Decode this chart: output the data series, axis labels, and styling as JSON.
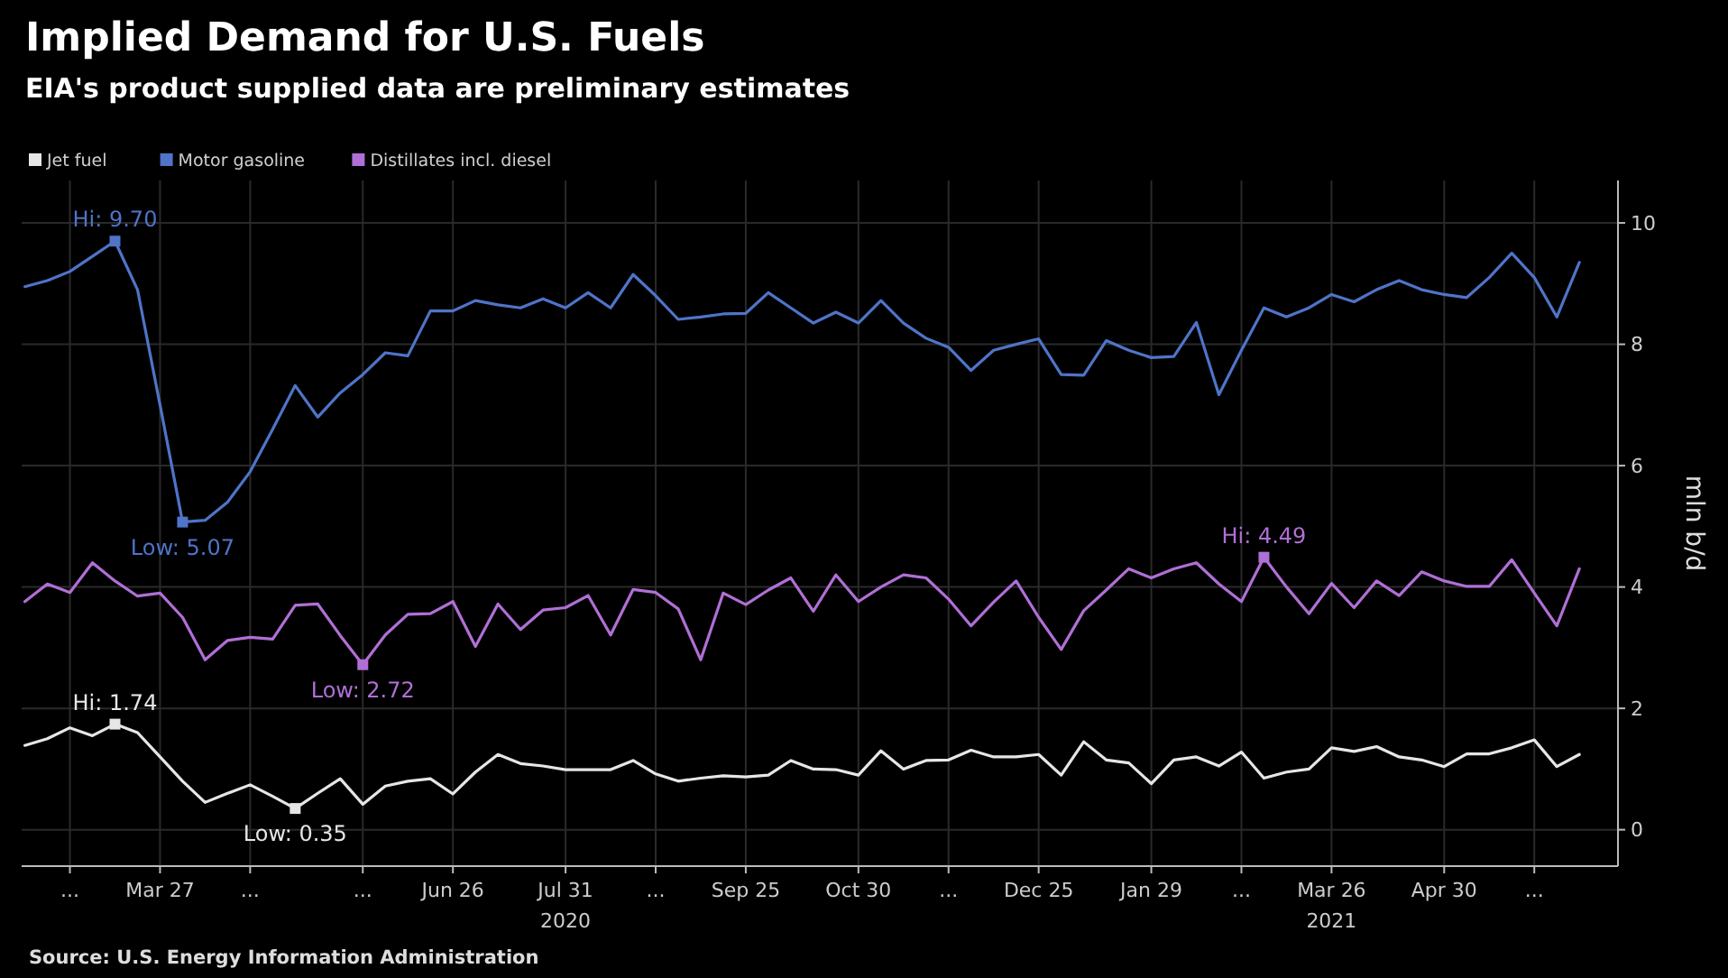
{
  "chart_data": {
    "type": "line",
    "title": "Implied Demand for U.S. Fuels",
    "subtitle": "EIA's product supplied data are preliminary estimates",
    "ylabel": "mln b/d",
    "x": [
      "2020-02-14",
      "2020-02-21",
      "2020-02-28",
      "2020-03-06",
      "2020-03-13",
      "2020-03-20",
      "2020-03-27",
      "2020-04-03",
      "2020-04-10",
      "2020-04-17",
      "2020-04-24",
      "2020-05-01",
      "2020-05-08",
      "2020-05-15",
      "2020-05-22",
      "2020-05-29",
      "2020-06-05",
      "2020-06-12",
      "2020-06-19",
      "2020-06-26",
      "2020-07-03",
      "2020-07-10",
      "2020-07-17",
      "2020-07-24",
      "2020-07-31",
      "2020-08-07",
      "2020-08-14",
      "2020-08-21",
      "2020-08-28",
      "2020-09-04",
      "2020-09-11",
      "2020-09-18",
      "2020-09-25",
      "2020-10-02",
      "2020-10-09",
      "2020-10-16",
      "2020-10-23",
      "2020-10-30",
      "2020-11-06",
      "2020-11-13",
      "2020-11-20",
      "2020-11-27",
      "2020-12-04",
      "2020-12-11",
      "2020-12-18",
      "2020-12-25",
      "2021-01-01",
      "2021-01-08",
      "2021-01-15",
      "2021-01-22",
      "2021-01-29",
      "2021-02-05",
      "2021-02-12",
      "2021-02-19",
      "2021-02-26",
      "2021-03-05",
      "2021-03-12",
      "2021-03-19",
      "2021-03-26",
      "2021-04-02",
      "2021-04-09",
      "2021-04-16",
      "2021-04-23",
      "2021-04-30",
      "2021-05-07",
      "2021-05-14",
      "2021-05-21",
      "2021-05-28",
      "2021-06-04",
      "2021-06-11"
    ],
    "series": [
      {
        "name": "Jet fuel",
        "color": "#e6e6e6",
        "values": [
          1.39,
          1.5,
          1.68,
          1.55,
          1.74,
          1.6,
          1.2,
          0.8,
          0.45,
          0.6,
          0.74,
          0.55,
          0.35,
          0.6,
          0.84,
          0.42,
          0.72,
          0.8,
          0.84,
          0.59,
          0.95,
          1.24,
          1.09,
          1.05,
          0.99,
          0.99,
          0.99,
          1.14,
          0.92,
          0.8,
          0.85,
          0.89,
          0.87,
          0.9,
          1.14,
          1.0,
          0.99,
          0.9,
          1.3,
          1.0,
          1.14,
          1.15,
          1.31,
          1.2,
          1.2,
          1.24,
          0.9,
          1.45,
          1.15,
          1.1,
          0.76,
          1.15,
          1.2,
          1.05,
          1.28,
          0.85,
          0.95,
          1.0,
          1.35,
          1.29,
          1.37,
          1.2,
          1.15,
          1.04,
          1.25,
          1.25,
          1.35,
          1.48,
          1.04,
          1.24
        ]
      },
      {
        "name": "Motor gasoline",
        "color": "#4f74c8",
        "values": [
          8.95,
          9.05,
          9.2,
          9.45,
          9.7,
          8.9,
          7.0,
          5.07,
          5.1,
          5.4,
          5.9,
          6.6,
          7.32,
          6.8,
          7.2,
          7.5,
          7.86,
          7.81,
          8.55,
          8.55,
          8.72,
          8.65,
          8.6,
          8.75,
          8.6,
          8.85,
          8.6,
          9.15,
          8.8,
          8.41,
          8.45,
          8.5,
          8.51,
          8.85,
          8.6,
          8.35,
          8.53,
          8.35,
          8.72,
          8.35,
          8.1,
          7.95,
          7.57,
          7.9,
          8.0,
          8.09,
          7.5,
          7.49,
          8.06,
          7.9,
          7.78,
          7.8,
          8.36,
          7.17,
          7.9,
          8.6,
          8.45,
          8.6,
          8.82,
          8.7,
          8.9,
          9.05,
          8.9,
          8.82,
          8.77,
          9.1,
          9.5,
          9.1,
          8.45,
          9.35
        ]
      },
      {
        "name": "Distillates incl. diesel",
        "color": "#b06fd6",
        "values": [
          3.76,
          4.05,
          3.91,
          4.4,
          4.1,
          3.85,
          3.9,
          3.5,
          2.8,
          3.12,
          3.17,
          3.14,
          3.7,
          3.72,
          3.2,
          2.72,
          3.21,
          3.55,
          3.56,
          3.76,
          3.02,
          3.72,
          3.3,
          3.62,
          3.66,
          3.86,
          3.21,
          3.96,
          3.91,
          3.64,
          2.8,
          3.9,
          3.71,
          3.95,
          4.15,
          3.6,
          4.2,
          3.76,
          4.0,
          4.2,
          4.15,
          3.8,
          3.36,
          3.75,
          4.1,
          3.5,
          2.97,
          3.61,
          3.95,
          4.3,
          4.15,
          4.3,
          4.4,
          4.05,
          3.76,
          4.49,
          4.0,
          3.56,
          4.06,
          3.66,
          4.1,
          3.86,
          4.25,
          4.1,
          4.01,
          4.01,
          4.45,
          3.9,
          3.36,
          4.3
        ]
      }
    ],
    "xlim": [
      "2020-02-13",
      "2021-06-23"
    ],
    "xticks": [
      {
        "value": "2020-02-28",
        "label": "..."
      },
      {
        "value": "2020-03-27",
        "label": "Mar 27"
      },
      {
        "value": "2020-04-24",
        "label": "..."
      },
      {
        "value": "2020-05-29",
        "label": "..."
      },
      {
        "value": "2020-06-26",
        "label": "Jun 26"
      },
      {
        "value": "2020-07-31",
        "label": "Jul 31\n2020"
      },
      {
        "value": "2020-08-28",
        "label": "..."
      },
      {
        "value": "2020-09-25",
        "label": "Sep 25"
      },
      {
        "value": "2020-10-30",
        "label": "Oct 30"
      },
      {
        "value": "2020-11-27",
        "label": "..."
      },
      {
        "value": "2020-12-25",
        "label": "Dec 25"
      },
      {
        "value": "2021-01-29",
        "label": "Jan 29"
      },
      {
        "value": "2021-02-26",
        "label": "..."
      },
      {
        "value": "2021-03-26",
        "label": "Mar 26\n2021"
      },
      {
        "value": "2021-04-30",
        "label": "Apr 30"
      },
      {
        "value": "2021-05-28",
        "label": "..."
      }
    ],
    "ylim": [
      -0.6,
      10.7
    ],
    "yticks": [
      0,
      2,
      4,
      6,
      8,
      10
    ],
    "grid": true,
    "legend": "top left",
    "line_style": "solid",
    "annotations": [
      {
        "text": "Hi: 9.70",
        "x": "2020-03-13",
        "y": 9.7
      },
      {
        "text": "Low: 5.07",
        "x": "2020-04-03",
        "y": 5.07
      },
      {
        "text": "Low: 2.72",
        "x": "2020-05-29",
        "y": 2.72
      },
      {
        "text": "Hi: 4.49",
        "x": "2021-03-05",
        "y": 4.49
      },
      {
        "text": "Hi: 1.74",
        "x": "2020-03-13",
        "y": 1.74
      },
      {
        "text": "Low: 0.35",
        "x": "2020-05-08",
        "y": 0.35
      },
      "Source: U.S. Energy Information Administration"
    ]
  }
}
